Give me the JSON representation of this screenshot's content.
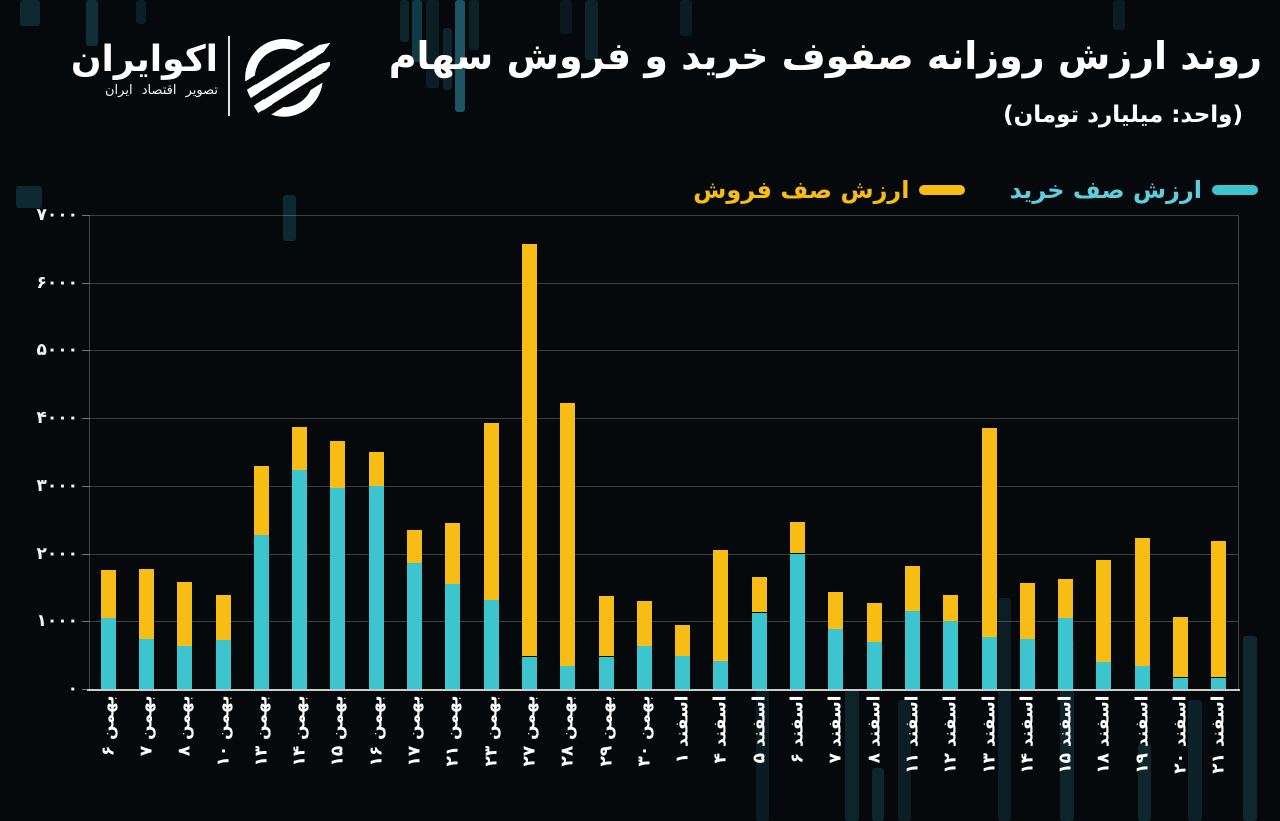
{
  "header": {
    "logo_name": "اکوایران",
    "logo_tagline": "تصویر اقتصاد ایران"
  },
  "title": "روند ارزش روزانه صفوف خرید و فروش سهام",
  "subtitle": "(واحد: میلیارد تومان)",
  "legend": {
    "buy_label": "ارزش صف خرید",
    "sell_label": "ارزش صف فروش"
  },
  "colors": {
    "buy": "#3CC5CE",
    "sell": "#F8BD15",
    "buy_text": "#5FCEDA",
    "sell_text": "#F8BD15",
    "background": "#06090B",
    "grid": "rgba(255,255,255,0.22)"
  },
  "chart_data": {
    "type": "bar",
    "stacked": true,
    "title": "روند ارزش روزانه صفوف خرید و فروش سهام",
    "unit_label": "میلیارد تومان",
    "categories": [
      "بهمن ۶",
      "بهمن ۷",
      "بهمن ۸",
      "بهمن ۱۰",
      "بهمن ۱۳",
      "بهمن ۱۴",
      "بهمن ۱۵",
      "بهمن ۱۶",
      "بهمن ۱۷",
      "بهمن ۲۱",
      "بهمن ۲۳",
      "بهمن ۲۷",
      "بهمن ۲۸",
      "بهمن ۲۹",
      "بهمن ۳۰",
      "اسفند ۱",
      "اسفند ۴",
      "اسفند ۵",
      "اسفند ۶",
      "اسفند ۷",
      "اسفند ۸",
      "اسفند ۱۱",
      "اسفند ۱۲",
      "اسفند ۱۳",
      "اسفند ۱۴",
      "اسفند ۱۵",
      "اسفند ۱۸",
      "اسفند ۱۹",
      "اسفند ۲۰",
      "اسفند ۲۱"
    ],
    "series": [
      {
        "name": "ارزش صف خرید",
        "color": "#3CC5CE",
        "values": [
          1050,
          740,
          630,
          730,
          2270,
          3230,
          2970,
          3000,
          1860,
          1550,
          1310,
          480,
          340,
          480,
          630,
          490,
          420,
          1130,
          2000,
          890,
          700,
          1150,
          1000,
          770,
          740,
          1050,
          400,
          340,
          170,
          170
        ]
      },
      {
        "name": "ارزش صف فروش",
        "color": "#F8BD15",
        "values": [
          710,
          1040,
          950,
          660,
          1020,
          640,
          700,
          500,
          490,
          900,
          2620,
          6090,
          3880,
          900,
          670,
          460,
          1640,
          520,
          470,
          550,
          570,
          660,
          390,
          3090,
          830,
          580,
          1510,
          1890,
          890,
          2010
        ]
      }
    ],
    "ylim": [
      0,
      7000
    ],
    "yticks": [
      {
        "value": 7000,
        "label": "۷۰۰۰"
      },
      {
        "value": 6000,
        "label": "۶۰۰۰"
      },
      {
        "value": 5000,
        "label": "۵۰۰۰"
      },
      {
        "value": 4000,
        "label": "۴۰۰۰"
      },
      {
        "value": 3000,
        "label": "۳۰۰۰"
      },
      {
        "value": 2000,
        "label": "۲۰۰۰"
      },
      {
        "value": 1000,
        "label": "۱۰۰۰"
      },
      {
        "value": 0,
        "label": "۰"
      }
    ],
    "grid": true,
    "legend_position": "top-right"
  }
}
